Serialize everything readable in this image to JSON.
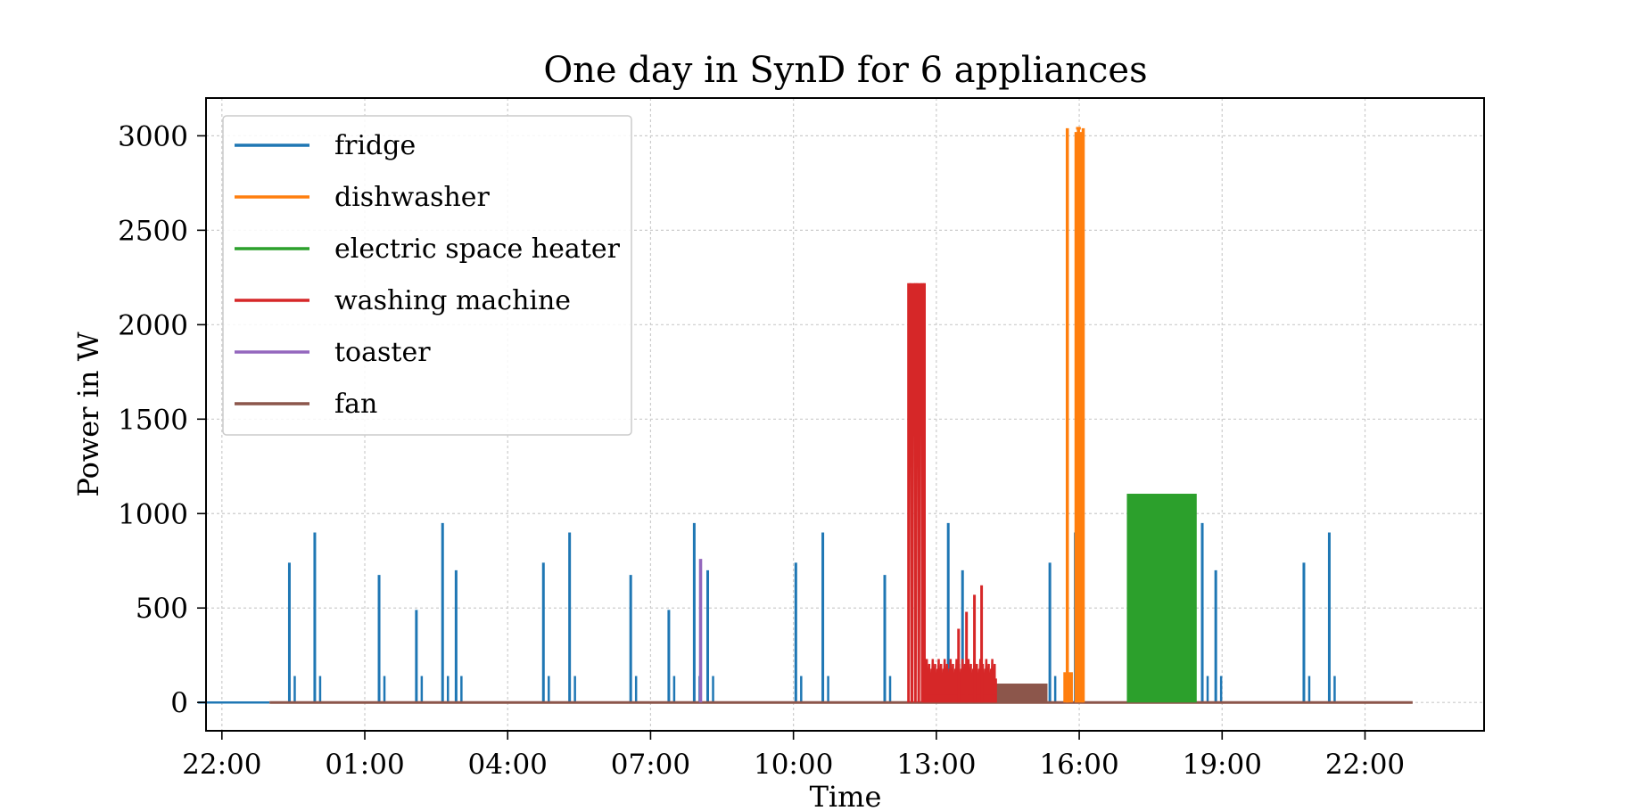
{
  "chart_data": {
    "type": "line",
    "title": "One day in SynD for 6 appliances",
    "xlabel": "Time",
    "ylabel": "Power in W",
    "xlim": [
      "21:40",
      "24:30"
    ],
    "ylim": [
      -150,
      3200
    ],
    "x_ticks": [
      "22:00",
      "01:00",
      "04:00",
      "07:00",
      "10:00",
      "13:00",
      "16:00",
      "19:00",
      "22:00"
    ],
    "y_ticks": [
      0,
      500,
      1000,
      1500,
      2000,
      2500,
      3000
    ],
    "grid": true,
    "legend_position": "top-left",
    "series": [
      {
        "name": "fridge",
        "color": "#1f77b4",
        "baseline_start": "23:00",
        "baseline_end": "21:30",
        "baseline_cycle_spikes_w": 70,
        "spikes": [
          {
            "time": "23:25",
            "value": 740
          },
          {
            "time": "23:57",
            "value": 900
          },
          {
            "time": "01:18",
            "value": 675
          },
          {
            "time": "02:05",
            "value": 490
          },
          {
            "time": "02:38",
            "value": 950
          },
          {
            "time": "02:55",
            "value": 700
          },
          {
            "time": "04:45",
            "value": 740
          },
          {
            "time": "05:18",
            "value": 900
          },
          {
            "time": "06:35",
            "value": 675
          },
          {
            "time": "07:23",
            "value": 490
          },
          {
            "time": "07:55",
            "value": 950
          },
          {
            "time": "08:12",
            "value": 700
          },
          {
            "time": "10:03",
            "value": 740
          },
          {
            "time": "10:37",
            "value": 900
          },
          {
            "time": "11:55",
            "value": 675
          },
          {
            "time": "13:15",
            "value": 950
          },
          {
            "time": "13:33",
            "value": 700
          },
          {
            "time": "15:23",
            "value": 740
          },
          {
            "time": "15:55",
            "value": 900
          },
          {
            "time": "18:35",
            "value": 950
          },
          {
            "time": "18:52",
            "value": 700
          },
          {
            "time": "20:43",
            "value": 740
          },
          {
            "time": "21:15",
            "value": 900
          }
        ]
      },
      {
        "name": "dishwasher",
        "color": "#ff7f0e",
        "runs": [
          {
            "start": "15:45",
            "end": "16:05",
            "value": 3040
          }
        ],
        "low_run": {
          "start": "15:40",
          "end": "15:52",
          "value": 160
        }
      },
      {
        "name": "electric space heater",
        "color": "#2ca02c",
        "runs": [
          {
            "start": "17:00",
            "end": "18:28",
            "value": 1105
          }
        ]
      },
      {
        "name": "washing machine",
        "color": "#d62728",
        "runs": [
          {
            "start": "12:25",
            "end": "12:45",
            "value": 2220
          }
        ],
        "low_run": {
          "start": "12:45",
          "end": "14:15",
          "value": 230
        },
        "late_spikes": [
          {
            "time": "13:28",
            "value": 390
          },
          {
            "time": "13:38",
            "value": 480
          },
          {
            "time": "13:48",
            "value": 570
          },
          {
            "time": "13:57",
            "value": 620
          }
        ]
      },
      {
        "name": "toaster",
        "color": "#9467bd",
        "runs": [
          {
            "start": "08:01",
            "end": "08:05",
            "value": 760
          }
        ]
      },
      {
        "name": "fan",
        "color": "#8c564b",
        "runs": [
          {
            "start": "14:15",
            "end": "15:20",
            "value": 100
          }
        ],
        "baseline_start": "23:00",
        "baseline_end": "23:00+1"
      }
    ]
  }
}
